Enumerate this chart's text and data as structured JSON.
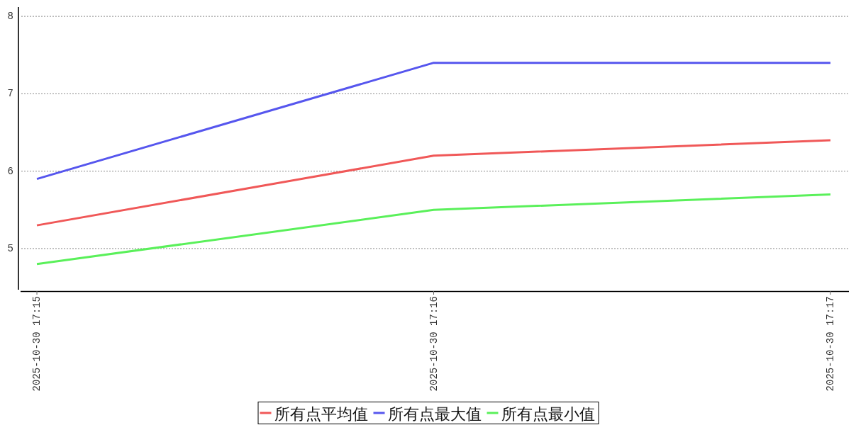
{
  "chart_data": {
    "type": "line",
    "categories": [
      "2025-10-30 17:15",
      "2025-10-30 17:16",
      "2025-10-30 17:17"
    ],
    "series": [
      {
        "name": "所有点平均值",
        "color": "#f05858",
        "values": [
          5.3,
          6.2,
          6.4
        ]
      },
      {
        "name": "所有点最大值",
        "color": "#5656ee",
        "values": [
          5.9,
          7.4,
          7.4
        ]
      },
      {
        "name": "所有点最小值",
        "color": "#5af05a",
        "values": [
          4.8,
          5.5,
          5.7
        ]
      }
    ],
    "ylim": [
      4.45,
      8.12
    ],
    "yticks": [
      5,
      6,
      7,
      8
    ],
    "grid": "y",
    "legend": "bottom",
    "line_style": "solid"
  }
}
